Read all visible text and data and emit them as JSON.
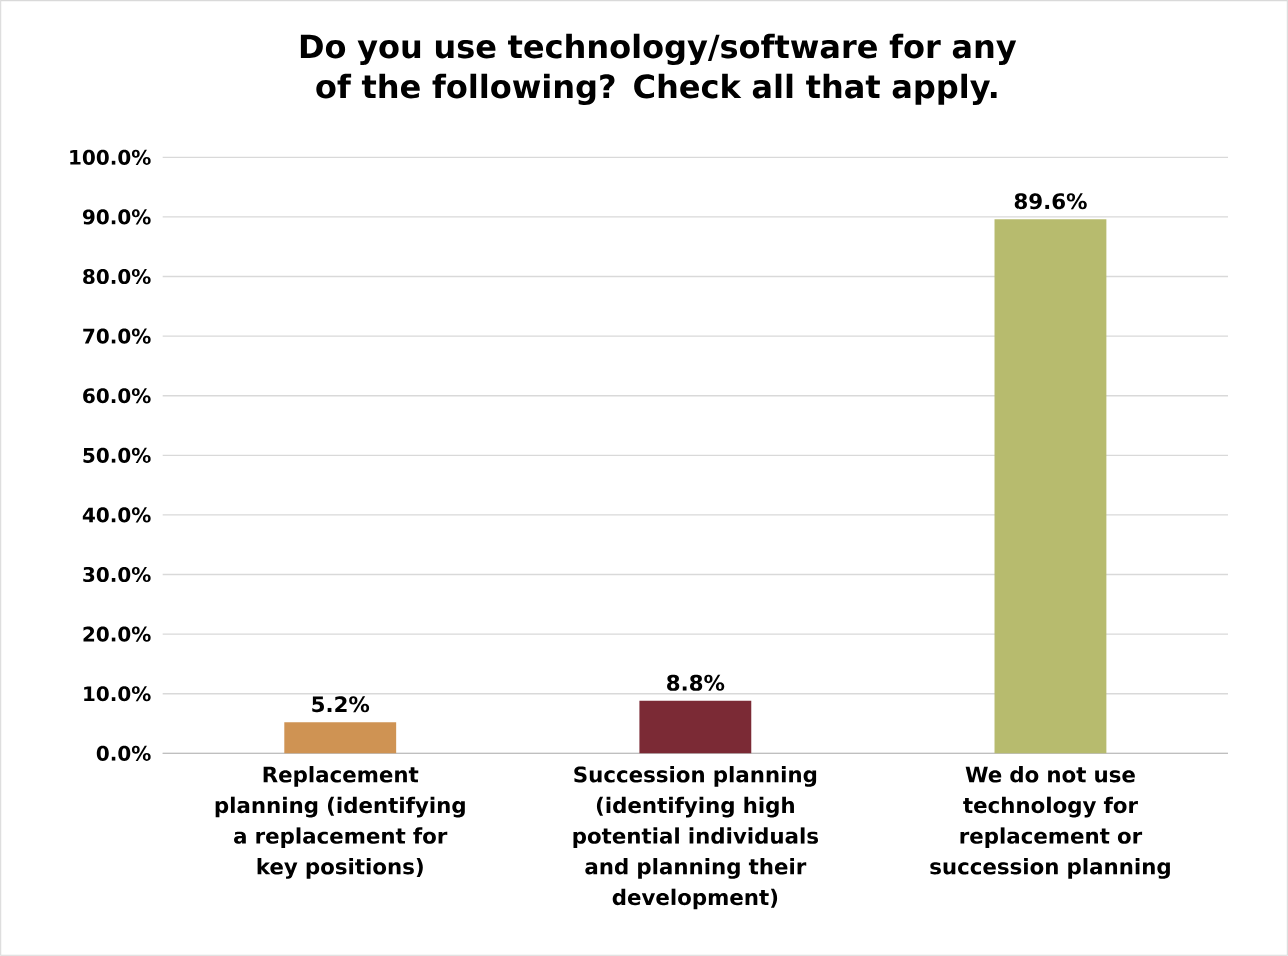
{
  "chart_data": {
    "type": "bar",
    "title": "Do you use technology/software for any of the following? Check all that apply.",
    "categories": [
      "Replacement planning (identifying a replacement for key positions)",
      "Succession planning (identifying high potential individuals and planning their development)",
      "We do not use technology for replacement or succession planning"
    ],
    "values": [
      5.2,
      8.8,
      89.6
    ],
    "colors": [
      "#cf9353",
      "#7b2a35",
      "#b7bb6e"
    ],
    "value_labels": [
      "5.2%",
      "8.8%",
      "89.6%"
    ],
    "ylim": [
      0,
      100
    ],
    "yticks": [
      {
        "value": 0,
        "label": "0.0%"
      },
      {
        "value": 10,
        "label": "10.0%"
      },
      {
        "value": 20,
        "label": "20.0%"
      },
      {
        "value": 30,
        "label": "30.0%"
      },
      {
        "value": 40,
        "label": "40.0%"
      },
      {
        "value": 50,
        "label": "50.0%"
      },
      {
        "value": 60,
        "label": "60.0%"
      },
      {
        "value": 70,
        "label": "70.0%"
      },
      {
        "value": 80,
        "label": "80.0%"
      },
      {
        "value": 90,
        "label": "90.0%"
      },
      {
        "value": 100,
        "label": "100.0%"
      }
    ],
    "grid": "y"
  }
}
